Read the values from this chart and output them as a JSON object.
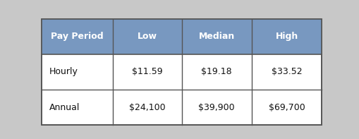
{
  "background_color": "#c8c8c8",
  "table_bg": "#ffffff",
  "header_bg": "#7898c0",
  "header_text_color": "#ffffff",
  "cell_text_color": "#111111",
  "border_color": "#555555",
  "columns": [
    "Pay Period",
    "Low",
    "Median",
    "High"
  ],
  "rows": [
    [
      "Hourly",
      "$11.59",
      "$19.18",
      "$33.52"
    ],
    [
      "Annual",
      "$24,100",
      "$39,900",
      "$69,700"
    ]
  ],
  "header_fontsize": 9.0,
  "cell_fontsize": 9.0,
  "header_fontweight": "bold",
  "cell_fontweight": "normal"
}
